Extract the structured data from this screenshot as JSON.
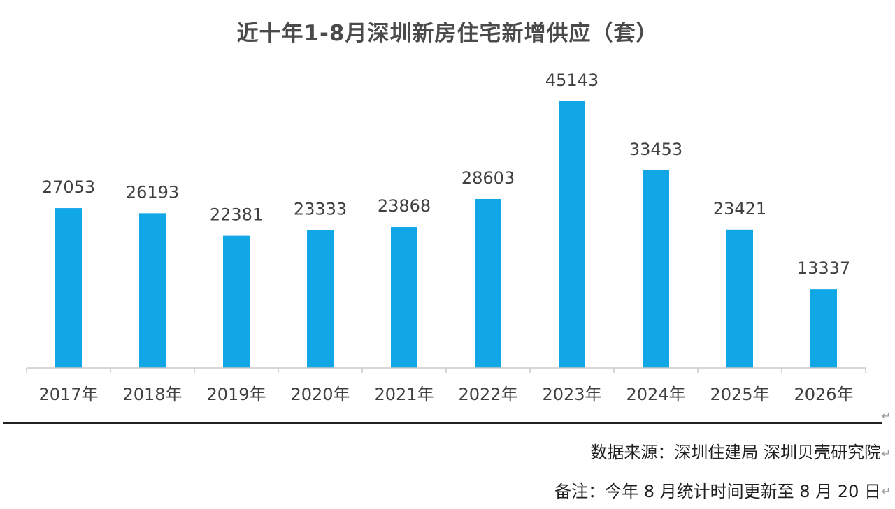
{
  "chart_data": {
    "type": "bar",
    "title": "近十年1-8月深圳新房住宅新增供应（套）",
    "categories": [
      "2017年",
      "2018年",
      "2019年",
      "2020年",
      "2021年",
      "2022年",
      "2023年",
      "2024年",
      "2025年",
      "2026年"
    ],
    "values": [
      27053,
      26193,
      22381,
      23333,
      23868,
      28603,
      45143,
      33453,
      23421,
      13337
    ],
    "ylim": [
      0,
      48000
    ],
    "grid": false,
    "legend": "none",
    "bar_color": "#11a6e6"
  },
  "notes": {
    "source": "数据来源：深圳住建局 深圳贝壳研究院",
    "remark": "备注：今年 8 月统计时间更新至 8 月 20 日"
  },
  "return_mark": "↵"
}
